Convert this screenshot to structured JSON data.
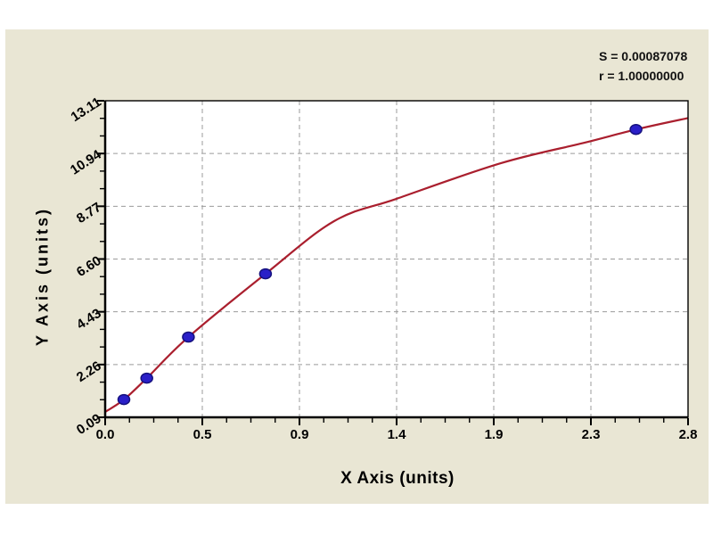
{
  "page": {
    "background_color": "#ffffff",
    "panel_color": "#e9e6d4"
  },
  "stats": {
    "s_line": "S = 0.00087078",
    "r_line": "r = 1.00000000"
  },
  "chart_data": {
    "type": "scatter",
    "title": "",
    "xlabel": "X Axis (units)",
    "ylabel": "Y Axis (units)",
    "xlim": [
      0,
      2.8
    ],
    "ylim": [
      0.09,
      13.11
    ],
    "x_tick_labels": [
      "0.0",
      "0.5",
      "0.9",
      "1.4",
      "1.9",
      "2.3",
      "2.8"
    ],
    "y_tick_labels": [
      "0.09",
      "2.26",
      "4.43",
      "6.60",
      "8.77",
      "10.94",
      "13.11"
    ],
    "x_minor_ticks_per_major": 3,
    "y_minor_ticks_per_major": 2,
    "grid": true,
    "grid_style": "dashed",
    "legend": false,
    "annotations": [
      "S = 0.00087078",
      "r = 1.00000000"
    ],
    "points": [
      [
        0.09,
        0.82
      ],
      [
        0.2,
        1.7
      ],
      [
        0.4,
        3.39
      ],
      [
        0.77,
        5.99
      ],
      [
        2.55,
        11.93
      ]
    ],
    "curve_points": [
      [
        0.0,
        0.31
      ],
      [
        0.09,
        0.82
      ],
      [
        0.2,
        1.7
      ],
      [
        0.4,
        3.39
      ],
      [
        0.77,
        5.99
      ],
      [
        1.1,
        8.16
      ],
      [
        1.4,
        9.08
      ],
      [
        1.9,
        10.54
      ],
      [
        2.3,
        11.38
      ],
      [
        2.55,
        11.93
      ],
      [
        2.8,
        12.4
      ]
    ],
    "colors": {
      "curve": "#aa1f2e",
      "marker_fill": "#2a1fc8",
      "marker_stroke": "#15117e",
      "grid": "#9b9b9b",
      "axis": "#000000",
      "plot_bg": "#ffffff",
      "panel_bg": "#e9e6d4"
    }
  }
}
